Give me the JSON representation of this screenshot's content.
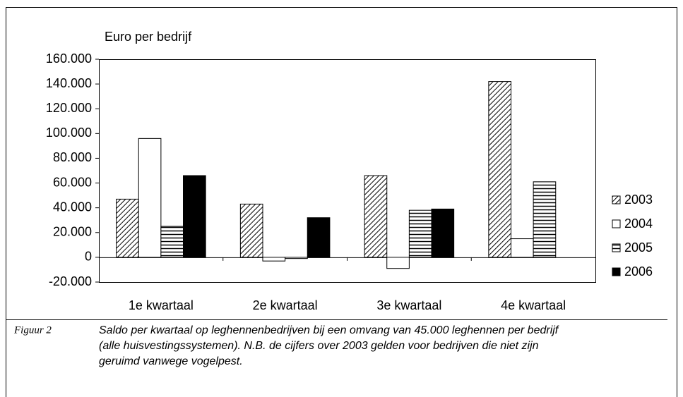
{
  "chart_data": {
    "type": "bar",
    "y_axis_label": "Euro per bedrijf",
    "categories": [
      "1e kwartaal",
      "2e kwartaal",
      "3e kwartaal",
      "4e kwartaal"
    ],
    "series": [
      {
        "name": "2003",
        "color": "#000000",
        "pattern": "diagonal",
        "values": [
          47000,
          43000,
          66000,
          142000
        ]
      },
      {
        "name": "2004",
        "color": "#ffffff",
        "pattern": "none",
        "values": [
          96000,
          -3000,
          -9000,
          15000
        ]
      },
      {
        "name": "2005",
        "color": "#000000",
        "pattern": "horizontal",
        "values": [
          25000,
          -1000,
          38000,
          61000
        ]
      },
      {
        "name": "2006",
        "color": "#000000",
        "pattern": "solid",
        "values": [
          66000,
          32000,
          39000,
          null
        ]
      }
    ],
    "ylim": [
      -20000,
      160000
    ],
    "yticks": [
      {
        "value": -20000,
        "label": "-20.000"
      },
      0,
      {
        "value": 20000,
        "label": "20.000"
      },
      {
        "value": 40000,
        "label": "40.000"
      },
      {
        "value": 60000,
        "label": "60.000"
      },
      {
        "value": 80000,
        "label": "80.000"
      },
      {
        "value": 100000,
        "label": "100.000"
      },
      {
        "value": 120000,
        "label": "120.000"
      },
      {
        "value": 140000,
        "label": "140.000"
      },
      {
        "value": 160000,
        "label": "160.000"
      }
    ],
    "legend": "right",
    "grid": false
  },
  "caption": {
    "label": "Figuur 2",
    "lines": [
      "Saldo per kwartaal op leghennenbedrijven bij een omvang van 45.000 leghennen per bedrijf",
      "(alle huisvestingssystemen). N.B. de cijfers over 2003 gelden voor bedrijven die niet zijn",
      "geruimd vanwege vogelpest."
    ]
  }
}
